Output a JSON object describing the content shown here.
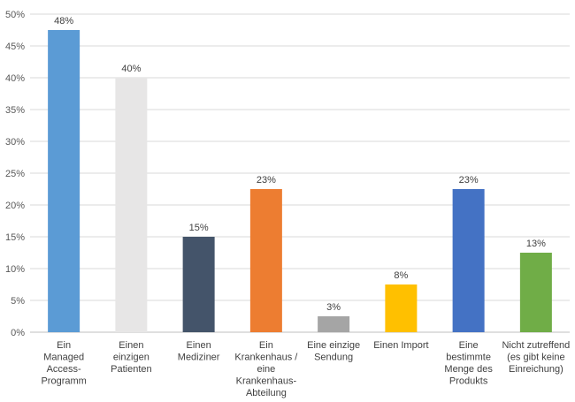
{
  "chart_data": {
    "type": "bar",
    "categories": [
      [
        "Ein",
        "Managed",
        "Access-",
        "Programm"
      ],
      [
        "Einen",
        "einzigen",
        "Patienten"
      ],
      [
        "Einen",
        "Mediziner"
      ],
      [
        "Ein",
        "Krankenhaus /",
        "eine",
        "Krankenhaus-",
        "Abteilung"
      ],
      [
        "Eine einzige",
        "Sendung"
      ],
      [
        "Einen Import"
      ],
      [
        "Eine",
        "bestimmte",
        "Menge des",
        "Produkts"
      ],
      [
        "Nicht zutreffend",
        "(es gibt keine",
        "Einreichung)"
      ]
    ],
    "values": [
      47.5,
      40,
      15,
      22.5,
      2.5,
      7.5,
      22.5,
      12.5
    ],
    "data_labels": [
      "48%",
      "40%",
      "15%",
      "23%",
      "3%",
      "8%",
      "23%",
      "13%"
    ],
    "bar_colors": [
      "#5B9BD5",
      "#E7E6E6",
      "#44546A",
      "#ED7D31",
      "#A5A5A5",
      "#FFC000",
      "#4472C4",
      "#70AD47"
    ],
    "ylim": [
      0,
      50
    ],
    "yticks": [
      "0%",
      "5%",
      "10%",
      "15%",
      "20%",
      "25%",
      "30%",
      "35%",
      "40%",
      "45%",
      "50%"
    ],
    "grid": true,
    "gridline_color": "#D9D9D9"
  }
}
